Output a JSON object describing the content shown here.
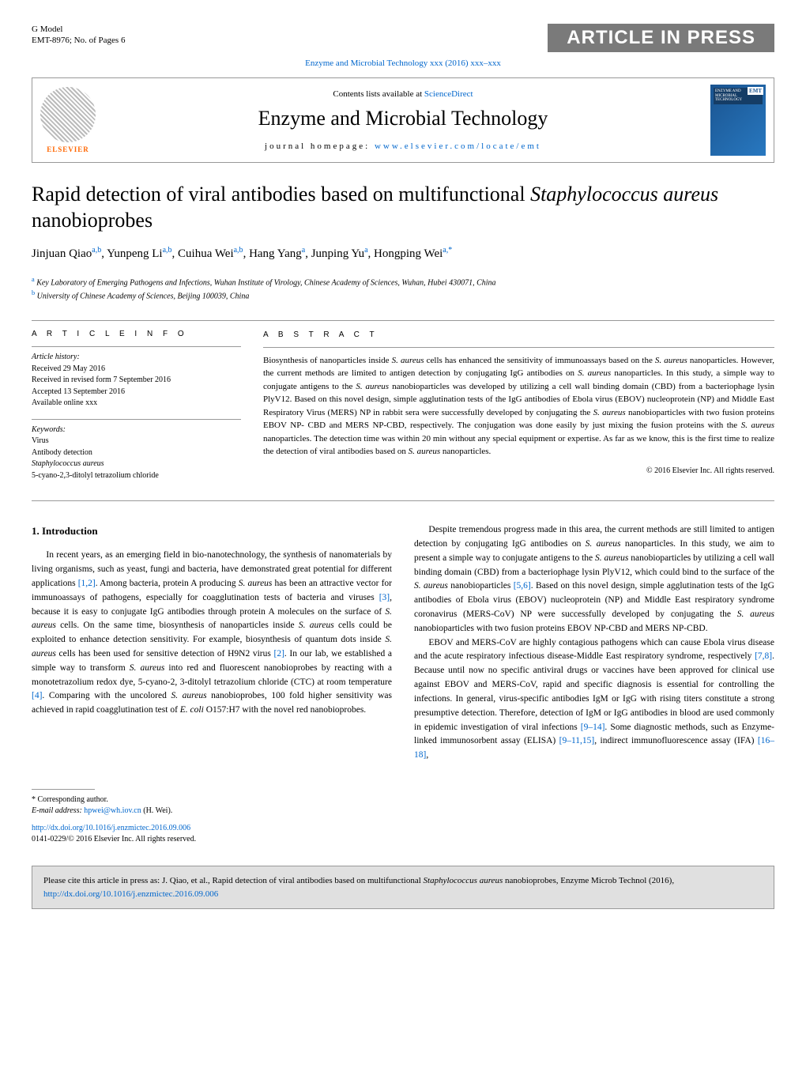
{
  "model": {
    "line1": "G Model",
    "line2": "EMT-8976;   No. of Pages 6"
  },
  "aip": "ARTICLE IN PRESS",
  "citation_top": "Enzyme and Microbial Technology xxx (2016) xxx–xxx",
  "header": {
    "contents_prefix": "Contents lists available at ",
    "sciencedirect": "ScienceDirect",
    "journal": "Enzyme and Microbial Technology",
    "homepage_prefix": "journal homepage: ",
    "homepage_url": "www.elsevier.com/locate/emt",
    "elsevier_label": "ELSEVIER",
    "cover_badge": "EMT",
    "cover_tiny": "ENZYME AND MICROBIAL TECHNOLOGY"
  },
  "title_html": "Rapid detection of viral antibodies based on multifunctional <em>Staphylococcus aureus</em> nanobioprobes",
  "authors_html": "Jinjuan Qiao<sup>a,b</sup>, Yunpeng Li<sup>a,b</sup>, Cuihua Wei<sup>a,b</sup>, Hang Yang<sup>a</sup>, Junping Yu<sup>a</sup>, Hongping Wei<sup>a,*</sup>",
  "affiliations": {
    "a": "Key Laboratory of Emerging Pathogens and Infections, Wuhan Institute of Virology, Chinese Academy of Sciences, Wuhan, Hubei 430071, China",
    "b": "University of Chinese Academy of Sciences, Beijing 100039, China"
  },
  "info": {
    "heading": "A R T I C L E   I N F O",
    "history_label": "Article history:",
    "received": "Received 29 May 2016",
    "revised": "Received in revised form 7 September 2016",
    "accepted": "Accepted 13 September 2016",
    "online": "Available online xxx",
    "keywords_label": "Keywords:",
    "kw1": "Virus",
    "kw2": "Antibody detection",
    "kw3": "Staphylococcus aureus",
    "kw4": "5-cyano-2,3-ditolyl tetrazolium chloride"
  },
  "abstract": {
    "heading": "A B S T R A C T",
    "text_html": "Biosynthesis of nanoparticles inside <em>S. aureus</em> cells has enhanced the sensitivity of immunoassays based on the <em>S. aureus</em> nanoparticles. However, the current methods are limited to antigen detection by conjugating IgG antibodies on <em>S. aureus</em> nanoparticles. In this study, a simple way to conjugate antigens to the <em>S. aureus</em> nanobioparticles was developed by utilizing a cell wall binding domain (CBD) from a bacteriophage lysin PlyV12. Based on this novel design, simple agglutination tests of the IgG antibodies of Ebola virus (EBOV) nucleoprotein (NP) and Middle East Respiratory Virus (MERS) NP in rabbit sera were successfully developed by conjugating the <em>S. aureus</em> nanobioparticles with two fusion proteins EBOV NP- CBD and MERS NP-CBD, respectively. The conjugation was done easily by just mixing the fusion proteins with the <em>S. aureus</em> nanoparticles. The detection time was within 20 min without any special equipment or expertise. As far as we know, this is the first time to realize the detection of viral antibodies based on <em>S. aureus</em> nanoparticles.",
    "copyright": "© 2016 Elsevier Inc. All rights reserved."
  },
  "body": {
    "intro_heading": "1. Introduction",
    "left_html": "In recent years, as an emerging field in bio-nanotechnology, the synthesis of nanomaterials by living organisms, such as yeast, fungi and bacteria, have demonstrated great potential for different applications <span class='ref-link'>[1,2]</span>. Among bacteria, protein A producing <em>S. aureus</em> has been an attractive vector for immunoassays of pathogens, especially for coagglutination tests of bacteria and viruses <span class='ref-link'>[3]</span>, because it is easy to conjugate IgG antibodies through protein A molecules on the surface of <em>S. aureus</em> cells. On the same time, biosynthesis of nanoparticles inside <em>S. aureus</em> cells could be exploited to enhance detection sensitivity. For example, biosynthesis of quantum dots inside <em>S. aureus</em> cells has been used for sensitive detection of H9N2 virus <span class='ref-link'>[2]</span>. In our lab, we established a simple way to transform <em>S. aureus</em> into red and fluorescent nanobioprobes by reacting with a monotetrazolium redox dye, 5-cyano-2, 3-ditolyl tetrazolium chloride (CTC) at room temperature <span class='ref-link'>[4]</span>. Comparing with the uncolored <em>S. aureus</em> nanobioprobes, 100 fold higher sensitivity was achieved in rapid coagglutination test of <em>E. coli</em> O157:H7 with the novel red nanobioprobes.",
    "right_p1_html": "Despite tremendous progress made in this area, the current methods are still limited to antigen detection by conjugating IgG antibodies on <em>S. aureus</em> nanoparticles. In this study, we aim to present a simple way to conjugate antigens to the <em>S. aureus</em> nanobioparticles by utilizing a cell wall binding domain (CBD) from a bacteriophage lysin PlyV12, which could bind to the surface of the <em>S. aureus</em> nanobioparticles <span class='ref-link'>[5,6]</span>. Based on this novel design, simple agglutination tests of the IgG antibodies of Ebola virus (EBOV) nucleoprotein (NP) and Middle East respiratory syndrome coronavirus (MERS-CoV) NP were successfully developed by conjugating the <em>S. aureus</em> nanobioparticles with two fusion proteins EBOV NP-CBD and MERS NP-CBD.",
    "right_p2_html": "EBOV and MERS-CoV are highly contagious pathogens which can cause Ebola virus disease and the acute respiratory infectious disease-Middle East respiratory syndrome, respectively <span class='ref-link'>[7,8]</span>. Because until now no specific antiviral drugs or vaccines have been approved for clinical use against EBOV and MERS-CoV, rapid and specific diagnosis is essential for controlling the infections. In general, virus-specific antibodies IgM or IgG with rising titers constitute a strong presumptive detection. Therefore, detection of IgM or IgG antibodies in blood are used commonly in epidemic investigation of viral infections <span class='ref-link'>[9–14]</span>. Some diagnostic methods, such as Enzyme-linked immunosorbent assay (ELISA) <span class='ref-link'>[9–11,15]</span>, indirect immunofluorescence assay (IFA) <span class='ref-link'>[16–18]</span>,"
  },
  "footnote": {
    "corr": "* Corresponding author.",
    "email_label": "E-mail address:",
    "email": "hpwei@wh.iov.cn",
    "email_name": "(H. Wei)."
  },
  "doi": {
    "url": "http://dx.doi.org/10.1016/j.enzmictec.2016.09.006",
    "issn": "0141-0229/© 2016 Elsevier Inc. All rights reserved."
  },
  "citebox_html": "Please cite this article in press as: J. Qiao, et al., Rapid detection of viral antibodies based on multifunctional <em>Staphylococcus aureus</em> nanobioprobes, Enzyme Microb Technol (2016), <span class='doi-link'>http://dx.doi.org/10.1016/j.enzmictec.2016.09.006</span>"
}
